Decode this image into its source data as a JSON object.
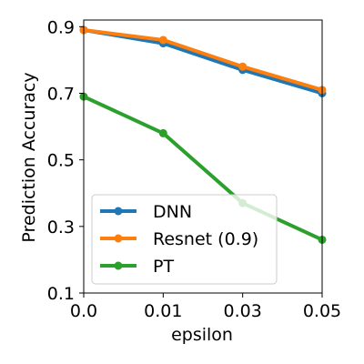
{
  "chart_data": {
    "type": "line",
    "xlabel": "epsilon",
    "ylabel": "Prediction Accuracy",
    "categories": [
      "0.0",
      "0.01",
      "0.03",
      "0.05"
    ],
    "ylim": [
      0.1,
      0.92
    ],
    "yticks": [
      "0.9",
      "0.7",
      "0.5",
      "0.3",
      "0.1"
    ],
    "ytick_values": [
      0.9,
      0.7,
      0.5,
      0.3,
      0.1
    ],
    "grid": false,
    "legend_position": "lower-left",
    "series": [
      {
        "name": "DNN",
        "color": "#1f77b4",
        "values": [
          0.89,
          0.85,
          0.77,
          0.7
        ]
      },
      {
        "name": "Resnet (0.9)",
        "color": "#ff7f0e",
        "values": [
          0.89,
          0.86,
          0.78,
          0.71
        ]
      },
      {
        "name": "PT",
        "color": "#2ca02c",
        "values": [
          0.69,
          0.58,
          0.37,
          0.26
        ]
      }
    ]
  }
}
